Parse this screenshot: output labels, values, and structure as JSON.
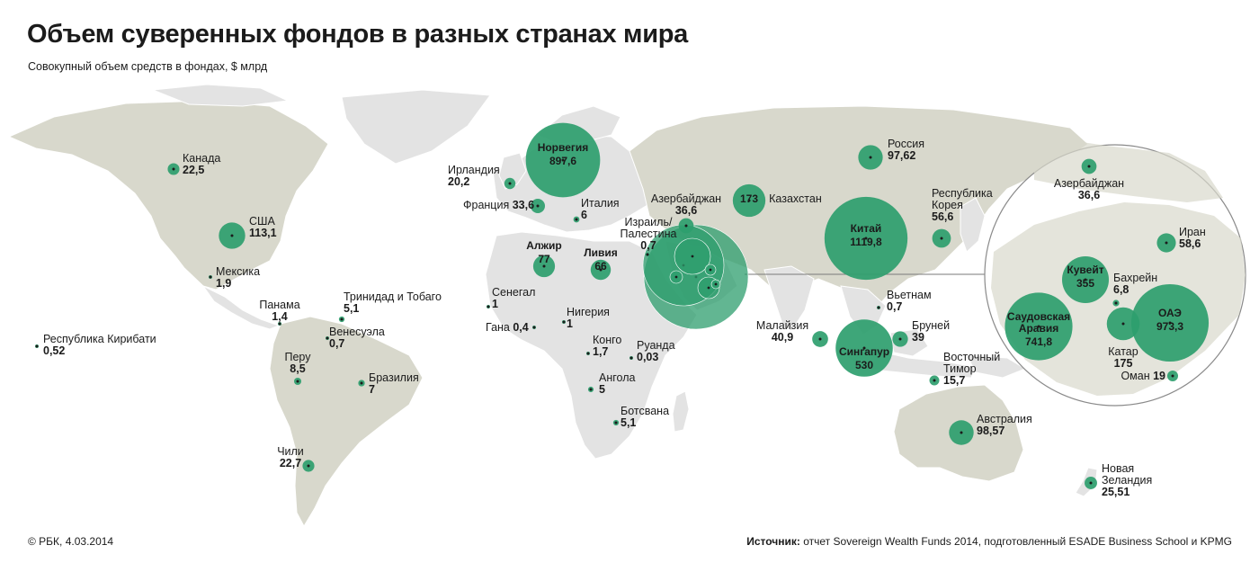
{
  "title": "Объем суверенных фондов в разных странах мира",
  "subtitle": "Совокупный объем средств в фондах, $ млрд",
  "footer": {
    "copyright": "© РБК, 4.03.2014",
    "source_label": "Источник:",
    "source_text": "отчет Sovereign Wealth Funds 2014, подготовленный ESADE Business School и KPMG"
  },
  "colors": {
    "bubble": "#2e9e6e",
    "bubble_light": "#57b98c",
    "land": "#e3e3e3",
    "land_dark": "#d0d0c4",
    "text": "#1b1b1b"
  },
  "chart_data": {
    "type": "bubble-map",
    "unit": "$ млрд",
    "countries": [
      {
        "name": "Канада",
        "value": "22,5"
      },
      {
        "name": "США",
        "value": "113,1"
      },
      {
        "name": "Мексика",
        "value": "1,9"
      },
      {
        "name": "Панама",
        "value": "1,4"
      },
      {
        "name": "Тринидад и Тобаго",
        "value": "5,1"
      },
      {
        "name": "Венесуэла",
        "value": "0,7"
      },
      {
        "name": "Республика Кирибати",
        "value": "0,52"
      },
      {
        "name": "Перу",
        "value": "8,5"
      },
      {
        "name": "Бразилия",
        "value": "7"
      },
      {
        "name": "Чили",
        "value": "22,7"
      },
      {
        "name": "Норвегия",
        "value": "897,6"
      },
      {
        "name": "Ирландия",
        "value": "20,2"
      },
      {
        "name": "Франция",
        "value": "33,6"
      },
      {
        "name": "Италия",
        "value": "6"
      },
      {
        "name": "Израиль/ Палестина",
        "value": "0,7"
      },
      {
        "name": "Алжир",
        "value": "77"
      },
      {
        "name": "Ливия",
        "value": "66"
      },
      {
        "name": "Сенегал",
        "value": "1"
      },
      {
        "name": "Нигерия",
        "value": "1"
      },
      {
        "name": "Гана",
        "value": "0,4"
      },
      {
        "name": "Конго",
        "value": "1,7"
      },
      {
        "name": "Руанда",
        "value": "0,03"
      },
      {
        "name": "Ангола",
        "value": "5"
      },
      {
        "name": "Ботсвана",
        "value": "5,1"
      },
      {
        "name": "Азербайджан",
        "value": "36,6"
      },
      {
        "name": "Казахстан",
        "value": "173"
      },
      {
        "name": "Россия",
        "value": "97,62"
      },
      {
        "name": "Китай",
        "value": "1119,8"
      },
      {
        "name": "Республика Корея",
        "value": "56,6"
      },
      {
        "name": "Вьетнам",
        "value": "0,7"
      },
      {
        "name": "Малайзия",
        "value": "40,9"
      },
      {
        "name": "Сингапур",
        "value": "530"
      },
      {
        "name": "Бруней",
        "value": "39"
      },
      {
        "name": "Восточный Тимор",
        "value": "15,7"
      },
      {
        "name": "Австралия",
        "value": "98,57"
      },
      {
        "name": "Новая Зеландия",
        "value": "25,51"
      }
    ],
    "inset": [
      {
        "name": "Азербайджан",
        "value": "36,6"
      },
      {
        "name": "Иран",
        "value": "58,6"
      },
      {
        "name": "Кувейт",
        "value": "355"
      },
      {
        "name": "Бахрейн",
        "value": "6,8"
      },
      {
        "name": "Саудовская Аравия",
        "value": "741,8"
      },
      {
        "name": "ОАЭ",
        "value": "973,3"
      },
      {
        "name": "Катар",
        "value": "175"
      },
      {
        "name": "Оман",
        "value": "19"
      }
    ]
  }
}
